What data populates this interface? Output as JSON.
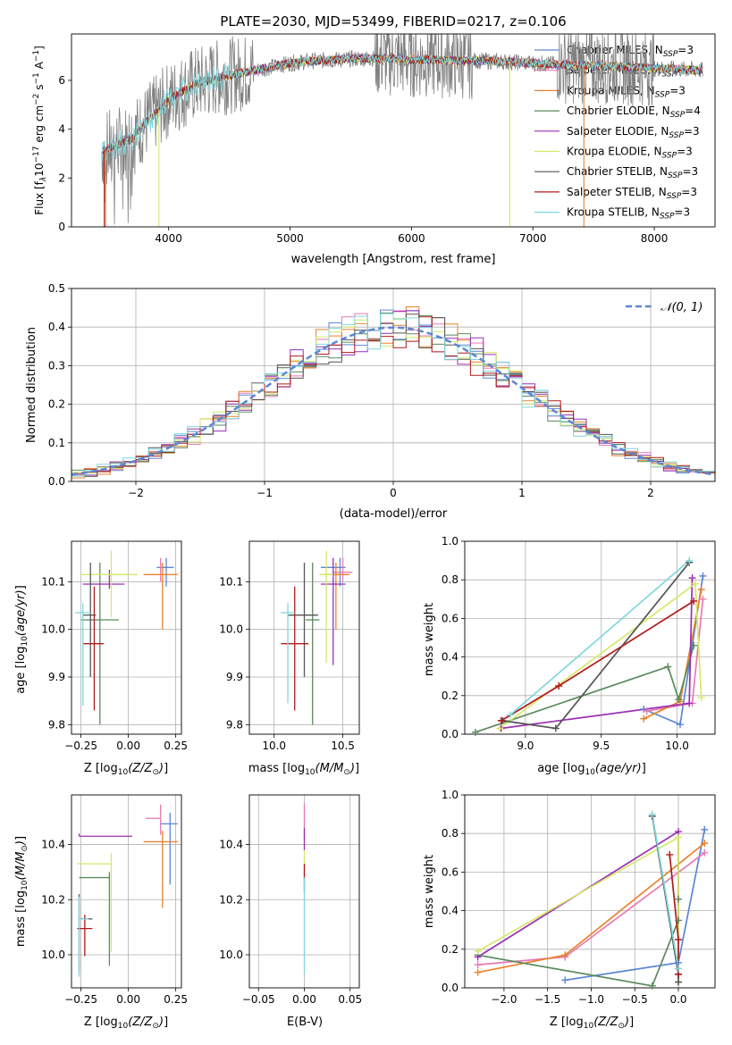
{
  "colors": {
    "chabrier_miles": "#5b86d6",
    "salpeter_miles": "#e87ab3",
    "kroupa_miles": "#e8822a",
    "chabrier_elodie": "#5a8a5e",
    "salpeter_elodie": "#9a2fb3",
    "kroupa_elodie": "#d6e86a",
    "chabrier_stelib": "#555555",
    "salpeter_stelib": "#b01a1a",
    "kroupa_stelib": "#7fd8dc",
    "data_spectrum": "#808080",
    "normal_curve": "#5b86d6",
    "grid": "#b0b0b0"
  },
  "chart_data": [
    {
      "id": "spectrum",
      "type": "line",
      "title": "PLATE=2030, MJD=53499, FIBERID=0217, z=0.106",
      "xlabel": "wavelength [Angstrom, rest frame]",
      "ylabel": "Flux [f_λ 10^-17 erg cm^-2 s^-1 A^-1]",
      "xlim": [
        3200,
        8500
      ],
      "ylim": [
        0,
        7.9
      ],
      "xticks": [
        "4000",
        "5000",
        "6000",
        "7000",
        "8000"
      ],
      "yticks": [
        "0",
        "2",
        "4",
        "6"
      ],
      "grid": false,
      "legend_position": "right",
      "legend": [
        {
          "text": "Chabrier MILES, N",
          "sub": "SSP",
          "suffix": "=3"
        },
        {
          "text": "Salpeter MILES, N",
          "sub": "SSP",
          "suffix": "=3"
        },
        {
          "text": "Kroupa MILES, N",
          "sub": "SSP",
          "suffix": "=3"
        },
        {
          "text": "Chabrier ELODIE, N",
          "sub": "SSP",
          "suffix": "=4"
        },
        {
          "text": "Salpeter ELODIE, N",
          "sub": "SSP",
          "suffix": "=3"
        },
        {
          "text": "Kroupa ELODIE, N",
          "sub": "SSP",
          "suffix": "=3"
        },
        {
          "text": "Chabrier STELIB, N",
          "sub": "SSP",
          "suffix": "=3"
        },
        {
          "text": "Salpeter STELIB, N",
          "sub": "SSP",
          "suffix": "=3"
        },
        {
          "text": "Kroupa STELIB, N",
          "sub": "SSP",
          "suffix": "=3"
        }
      ],
      "continuum": {
        "x": [
          3450,
          3600,
          3700,
          3800,
          3900,
          4000,
          4200,
          4400,
          4600,
          4800,
          5000,
          5200,
          5400,
          5600,
          5800,
          6000,
          6200,
          6400,
          6600,
          6800,
          7000,
          7200,
          7400,
          7600,
          7800,
          8000,
          8200,
          8400
        ],
        "y": [
          3.1,
          3.4,
          3.6,
          4.2,
          4.7,
          5.2,
          5.8,
          6.1,
          6.3,
          6.5,
          6.7,
          6.8,
          6.85,
          6.9,
          6.9,
          6.85,
          6.85,
          6.8,
          6.8,
          6.75,
          6.7,
          6.65,
          6.6,
          6.6,
          6.55,
          6.5,
          6.45,
          6.4
        ]
      },
      "dips_model": [
        3470,
        3480,
        3920,
        6810,
        7420
      ],
      "noisy_data_ranges": [
        [
          3450,
          4700
        ],
        [
          5700,
          6500
        ],
        [
          7200,
          8000
        ]
      ]
    },
    {
      "id": "residuals",
      "type": "histogram",
      "xlabel": "(data-model)/error",
      "ylabel": "Normed distribution",
      "xlim": [
        -2.5,
        2.5
      ],
      "ylim": [
        0,
        0.5
      ],
      "xticks": [
        "−2",
        "−1",
        "0",
        "1",
        "2"
      ],
      "yticks": [
        "0.0",
        "0.1",
        "0.2",
        "0.3",
        "0.4",
        "0.5"
      ],
      "grid": true,
      "legend_position": "top-right",
      "legend": "𝒩(0, 1)",
      "bin_width": 0.1,
      "normal_mean": 0,
      "normal_sd": 1
    },
    {
      "id": "age_vs_Z",
      "type": "errorbar",
      "xlabel": "Z [log10(Z/Z⊙)]",
      "ylabel": "age  [log10(age/yr)]",
      "xlim": [
        -0.3,
        0.28
      ],
      "ylim": [
        9.78,
        10.185
      ],
      "xticks": [
        "−0.25",
        "0.00",
        "0.25"
      ],
      "yticks": [
        "9.8",
        "9.9",
        "10.0",
        "10.1"
      ],
      "grid": true,
      "points": [
        {
          "model": "chabrier_miles",
          "x": 0.2,
          "xerr": [
            0.05,
            0.04
          ],
          "y": 10.13,
          "yerr": [
            0.04,
            0.02
          ]
        },
        {
          "model": "salpeter_miles",
          "x": 0.17,
          "xerr": [
            0.0,
            0.0
          ],
          "y": 10.12,
          "yerr": [
            0.02,
            0.03
          ]
        },
        {
          "model": "kroupa_miles",
          "x": 0.18,
          "xerr": [
            0.1,
            0.08
          ],
          "y": 10.115,
          "yerr": [
            0.115,
            0.025
          ]
        },
        {
          "model": "chabrier_elodie",
          "x": -0.15,
          "xerr": [
            0.1,
            0.1
          ],
          "y": 10.02,
          "yerr": [
            0.22,
            0.12
          ]
        },
        {
          "model": "salpeter_elodie",
          "x": -0.1,
          "xerr": [
            0.14,
            0.08
          ],
          "y": 10.095,
          "yerr": [
            0.01,
            0.03
          ]
        },
        {
          "model": "kroupa_elodie",
          "x": -0.09,
          "xerr": [
            0.16,
            0.14
          ],
          "y": 10.115,
          "yerr": [
            0.09,
            0.05
          ]
        },
        {
          "model": "chabrier_stelib",
          "x": -0.2,
          "xerr": [
            0.04,
            0.03
          ],
          "y": 10.03,
          "yerr": [
            0.13,
            0.11
          ]
        },
        {
          "model": "salpeter_stelib",
          "x": -0.18,
          "xerr": [
            0.06,
            0.05
          ],
          "y": 9.97,
          "yerr": [
            0.14,
            0.12
          ]
        },
        {
          "model": "kroupa_stelib",
          "x": -0.24,
          "xerr": [
            0.04,
            0.04
          ],
          "y": 10.035,
          "yerr": [
            0.195,
            0.02
          ]
        }
      ]
    },
    {
      "id": "age_vs_mass",
      "type": "errorbar",
      "xlabel": "mass [log10(M/M⊙)]",
      "ylabel": "",
      "xlim": [
        9.82,
        10.62
      ],
      "ylim": [
        9.78,
        10.185
      ],
      "xticks": [
        "10.0",
        "10.5"
      ],
      "yticks": [
        "9.8",
        "9.9",
        "10.0",
        "10.1"
      ],
      "grid": true,
      "points": [
        {
          "model": "chabrier_miles",
          "x": 10.48,
          "xerr": [
            0.14,
            0.04
          ],
          "y": 10.13,
          "yerr": [
            0.04,
            0.02
          ]
        },
        {
          "model": "salpeter_miles",
          "x": 10.5,
          "xerr": [
            0.07,
            0.07
          ],
          "y": 10.12,
          "yerr": [
            0.02,
            0.03
          ]
        },
        {
          "model": "kroupa_miles",
          "x": 10.45,
          "xerr": [
            0.1,
            0.1
          ],
          "y": 10.115,
          "yerr": [
            0.115,
            0.025
          ]
        },
        {
          "model": "chabrier_elodie",
          "x": 10.28,
          "xerr": [
            0.05,
            0.05
          ],
          "y": 10.02,
          "yerr": [
            0.22,
            0.12
          ]
        },
        {
          "model": "salpeter_elodie",
          "x": 10.43,
          "xerr": [
            0.09,
            0.09
          ],
          "y": 10.095,
          "yerr": [
            0.17,
            0.055
          ]
        },
        {
          "model": "kroupa_elodie",
          "x": 10.38,
          "xerr": [
            0.05,
            0.05
          ],
          "y": 10.115,
          "yerr": [
            0.185,
            0.05
          ]
        },
        {
          "model": "chabrier_stelib",
          "x": 10.22,
          "xerr": [
            0.12,
            0.1
          ],
          "y": 10.03,
          "yerr": [
            0.13,
            0.11
          ]
        },
        {
          "model": "salpeter_stelib",
          "x": 10.15,
          "xerr": [
            0.1,
            0.1
          ],
          "y": 9.97,
          "yerr": [
            0.14,
            0.12
          ]
        },
        {
          "model": "kroupa_stelib",
          "x": 10.1,
          "xerr": [
            0.05,
            0.05
          ],
          "y": 10.035,
          "yerr": [
            0.19,
            0.02
          ]
        }
      ]
    },
    {
      "id": "weight_vs_age",
      "type": "line",
      "xlabel": "age  [log10(age/yr)]",
      "ylabel": "mass weight",
      "xlim": [
        8.6,
        10.25
      ],
      "ylim": [
        0,
        1
      ],
      "xticks": [
        "9.0",
        "9.5",
        "10.0"
      ],
      "yticks": [
        "0.0",
        "0.2",
        "0.4",
        "0.6",
        "0.8",
        "1.0"
      ],
      "grid": true,
      "series": [
        {
          "model": "chabrier_miles",
          "x": [
            9.78,
            10.02,
            10.17
          ],
          "y": [
            0.13,
            0.05,
            0.82
          ]
        },
        {
          "model": "salpeter_miles",
          "x": [
            9.8,
            10.1,
            10.17
          ],
          "y": [
            0.12,
            0.16,
            0.7
          ]
        },
        {
          "model": "kroupa_miles",
          "x": [
            9.78,
            10.02,
            10.16
          ],
          "y": [
            0.08,
            0.17,
            0.75
          ]
        },
        {
          "model": "chabrier_elodie",
          "x": [
            8.67,
            9.94,
            10.01,
            10.11
          ],
          "y": [
            0.01,
            0.35,
            0.18,
            0.46
          ]
        },
        {
          "model": "salpeter_elodie",
          "x": [
            8.84,
            10.08,
            10.1
          ],
          "y": [
            0.03,
            0.16,
            0.81
          ]
        },
        {
          "model": "kroupa_elodie",
          "x": [
            8.83,
            10.12,
            10.16
          ],
          "y": [
            0.03,
            0.78,
            0.19
          ]
        },
        {
          "model": "chabrier_stelib",
          "x": [
            8.85,
            9.2,
            10.08
          ],
          "y": [
            0.07,
            0.03,
            0.89
          ]
        },
        {
          "model": "salpeter_stelib",
          "x": [
            8.84,
            9.22,
            10.11
          ],
          "y": [
            0.07,
            0.25,
            0.69
          ]
        },
        {
          "model": "kroupa_stelib",
          "x": [
            8.9,
            10.08
          ],
          "y": [
            0.1,
            0.9
          ]
        }
      ]
    },
    {
      "id": "mass_vs_Z",
      "type": "errorbar",
      "xlabel": "Z [log10(Z/Z⊙)]",
      "ylabel": "mass [log10(M/M⊙)]",
      "xlim": [
        -0.3,
        0.28
      ],
      "ylim": [
        9.88,
        10.58
      ],
      "xticks": [
        "−0.25",
        "0.00",
        "0.25"
      ],
      "yticks": [
        "10.0",
        "10.2",
        "10.4"
      ],
      "grid": true,
      "points": [
        {
          "model": "chabrier_miles",
          "x": 0.22,
          "xerr": [
            0.05,
            0.04
          ],
          "y": 10.475,
          "yerr": [
            0.22,
            0.04
          ]
        },
        {
          "model": "salpeter_miles",
          "x": 0.17,
          "xerr": [
            0.08,
            0.0
          ],
          "y": 10.495,
          "yerr": [
            0.06,
            0.05
          ]
        },
        {
          "model": "kroupa_miles",
          "x": 0.18,
          "xerr": [
            0.1,
            0.08
          ],
          "y": 10.41,
          "yerr": [
            0.24,
            0.04
          ]
        },
        {
          "model": "chabrier_elodie",
          "x": -0.1,
          "xerr": [
            0.16,
            0.0
          ],
          "y": 10.28,
          "yerr": [
            0.32,
            0.02
          ]
        },
        {
          "model": "salpeter_elodie",
          "x": -0.26,
          "xerr": [
            0.0,
            0.28
          ],
          "y": 10.43,
          "yerr": [
            0.0,
            0.01
          ]
        },
        {
          "model": "kroupa_elodie",
          "x": -0.09,
          "xerr": [
            0.18,
            0.0
          ],
          "y": 10.33,
          "yerr": [
            0.32,
            0.04
          ]
        },
        {
          "model": "chabrier_stelib",
          "x": -0.26,
          "xerr": [
            0.0,
            0.07
          ],
          "y": 10.13,
          "yerr": [
            0.19,
            0.09
          ]
        },
        {
          "model": "salpeter_stelib",
          "x": -0.23,
          "xerr": [
            0.04,
            0.04
          ],
          "y": 10.095,
          "yerr": [
            0.1,
            0.05
          ]
        },
        {
          "model": "kroupa_stelib",
          "x": -0.26,
          "xerr": [
            0.0,
            0.05
          ],
          "y": 10.13,
          "yerr": [
            0.21,
            0.08
          ]
        }
      ]
    },
    {
      "id": "mass_vs_ebv",
      "type": "errorbar",
      "xlabel": "E(B-V)",
      "ylabel": "",
      "xlim": [
        -0.06,
        0.06
      ],
      "ylim": [
        9.88,
        10.58
      ],
      "xticks": [
        "−0.05",
        "0.00",
        "0.05"
      ],
      "yticks": [
        "10.0",
        "10.2",
        "10.4"
      ],
      "grid": true,
      "points": [
        {
          "model": "salpeter_miles",
          "x": 0,
          "y": 10.49,
          "yerr": [
            0.07,
            0.06
          ]
        },
        {
          "model": "salpeter_elodie",
          "x": 0,
          "y": 10.43,
          "yerr": [
            0.05,
            0.03
          ]
        },
        {
          "model": "kroupa_elodie",
          "x": 0,
          "y": 10.33,
          "yerr": [
            0.06,
            0.05
          ]
        },
        {
          "model": "salpeter_stelib",
          "x": 0,
          "y": 10.28,
          "yerr": [
            0.05,
            0.05
          ]
        },
        {
          "model": "kroupa_stelib",
          "x": 0,
          "y": 10.13,
          "yerr": [
            0.2,
            0.15
          ]
        }
      ]
    },
    {
      "id": "weight_vs_Z",
      "type": "line",
      "xlabel": "Z [log10(Z/Z⊙)]",
      "ylabel": "mass weight",
      "xlim": [
        -2.45,
        0.42
      ],
      "ylim": [
        0,
        1
      ],
      "xticks": [
        "−2.0",
        "−1.5",
        "−1.0",
        "−0.5",
        "0.0"
      ],
      "yticks": [
        "0.0",
        "0.2",
        "0.4",
        "0.6",
        "0.8",
        "1.0"
      ],
      "grid": true,
      "series": [
        {
          "model": "chabrier_miles",
          "x": [
            -1.3,
            0.0,
            0.3
          ],
          "y": [
            0.04,
            0.13,
            0.82
          ]
        },
        {
          "model": "salpeter_miles",
          "x": [
            -2.3,
            -1.3,
            0.3
          ],
          "y": [
            0.12,
            0.16,
            0.7
          ]
        },
        {
          "model": "kroupa_miles",
          "x": [
            -2.3,
            -1.3,
            0.3
          ],
          "y": [
            0.08,
            0.17,
            0.75
          ]
        },
        {
          "model": "chabrier_elodie",
          "x": [
            -2.3,
            -0.3,
            0.0,
            0.0
          ],
          "y": [
            0.17,
            0.01,
            0.35,
            0.46
          ]
        },
        {
          "model": "salpeter_elodie",
          "x": [
            -2.3,
            0.0,
            0.0
          ],
          "y": [
            0.16,
            0.81,
            0.03
          ]
        },
        {
          "model": "kroupa_elodie",
          "x": [
            -2.3,
            0.0,
            0.0
          ],
          "y": [
            0.19,
            0.78,
            0.03
          ]
        },
        {
          "model": "chabrier_stelib",
          "x": [
            -0.3,
            0.0,
            0.0
          ],
          "y": [
            0.89,
            0.07,
            0.03
          ]
        },
        {
          "model": "salpeter_stelib",
          "x": [
            -0.1,
            0.0,
            0.0
          ],
          "y": [
            0.69,
            0.25,
            0.07
          ]
        },
        {
          "model": "kroupa_stelib",
          "x": [
            -0.3,
            0.0
          ],
          "y": [
            0.9,
            0.1
          ]
        }
      ]
    }
  ]
}
